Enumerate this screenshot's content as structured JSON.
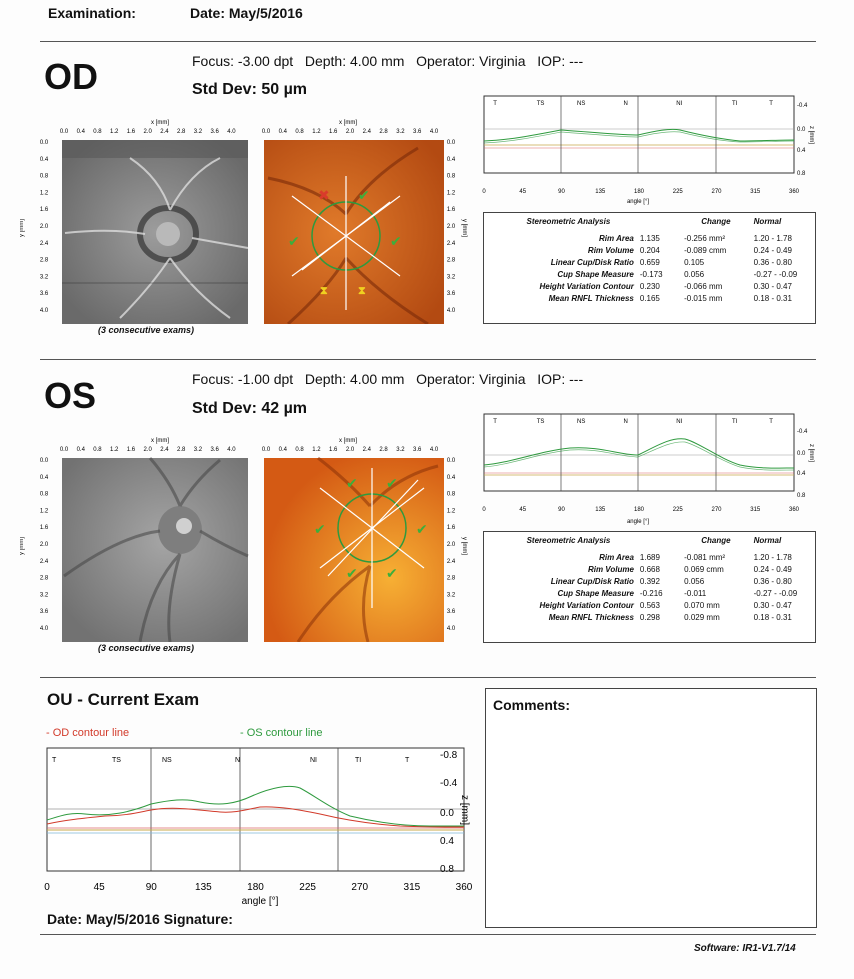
{
  "header": {
    "examination_label": "Examination:",
    "date_label": "Date: May/5/2016"
  },
  "od": {
    "eye_label": "OD",
    "focus_line": "Focus: -3.00 dpt   Depth: 4.00 mm   Operator: Virginia   IOP: ---",
    "std_dev": "Std Dev: 50 µm",
    "exams_caption": "(3 consecutive exams)",
    "sectors": [
      "T",
      "TS",
      "NS",
      "N",
      "NI",
      "TI",
      "T"
    ],
    "stereo": {
      "header": [
        "Stereometric Analysis",
        "Change",
        "Normal"
      ],
      "rows": [
        {
          "label": "Rim Area",
          "value": "1.135",
          "change": "-0.256 mm²",
          "normal": "1.20 - 1.78"
        },
        {
          "label": "Rim Volume",
          "value": "0.204",
          "change": "-0.089 cmm",
          "normal": "0.24 - 0.49"
        },
        {
          "label": "Linear Cup/Disk Ratio",
          "value": "0.659",
          "change": "0.105",
          "normal": "0.36 - 0.80"
        },
        {
          "label": "Cup Shape Measure",
          "value": "-0.173",
          "change": "0.056",
          "normal": "-0.27 - -0.09"
        },
        {
          "label": "Height Variation Contour",
          "value": "0.230",
          "change": "-0.066 mm",
          "normal": "0.30 - 0.47"
        },
        {
          "label": "Mean RNFL Thickness",
          "value": "0.165",
          "change": "-0.015 mm",
          "normal": "0.18 - 0.31"
        }
      ]
    }
  },
  "os": {
    "eye_label": "OS",
    "focus_line": "Focus: -1.00 dpt   Depth: 4.00 mm   Operator: Virginia   IOP: ---",
    "std_dev": "Std Dev: 42 µm",
    "exams_caption": "(3 consecutive exams)",
    "sectors": [
      "T",
      "TS",
      "NS",
      "N",
      "NI",
      "TI",
      "T"
    ],
    "stereo": {
      "header": [
        "Stereometric Analysis",
        "Change",
        "Normal"
      ],
      "rows": [
        {
          "label": "Rim Area",
          "value": "1.689",
          "change": "-0.081 mm²",
          "normal": "1.20 - 1.78"
        },
        {
          "label": "Rim Volume",
          "value": "0.668",
          "change": "0.069 cmm",
          "normal": "0.24 - 0.49"
        },
        {
          "label": "Linear Cup/Disk Ratio",
          "value": "0.392",
          "change": "0.056",
          "normal": "0.36 - 0.80"
        },
        {
          "label": "Cup Shape Measure",
          "value": "-0.216",
          "change": "-0.011",
          "normal": "-0.27 - -0.09"
        },
        {
          "label": "Height Variation Contour",
          "value": "0.563",
          "change": "0.070 mm",
          "normal": "0.30 - 0.47"
        },
        {
          "label": "Mean RNFL Thickness",
          "value": "0.298",
          "change": "0.029 mm",
          "normal": "0.18 - 0.31"
        }
      ]
    }
  },
  "image_axes": {
    "x_label": "x [mm]",
    "y_label": "y [mm]",
    "ticks": [
      "0.0",
      "0.4",
      "0.8",
      "1.2",
      "1.6",
      "2.0",
      "2.4",
      "2.8",
      "3.2",
      "3.6",
      "4.0"
    ]
  },
  "profile_axes": {
    "x_ticks": [
      "0",
      "45",
      "90",
      "135",
      "180",
      "225",
      "270",
      "315",
      "360"
    ],
    "x_label": "angle [°]",
    "y_ticks": [
      "-0.4",
      "0.0",
      "0.4",
      "0.8"
    ],
    "y_label": "z [mm]"
  },
  "ou": {
    "title": "OU - Current Exam",
    "od_legend": "- OD contour line",
    "os_legend": "- OS contour line",
    "sectors": [
      "T",
      "TS",
      "NS",
      "N",
      "NI",
      "TI",
      "T"
    ],
    "y_ticks": [
      "-0.8",
      "-0.4",
      "0.0",
      "0.4",
      "0.8"
    ],
    "x_ticks": [
      "0",
      "45",
      "90",
      "135",
      "180",
      "225",
      "270",
      "315",
      "360"
    ],
    "x_label": "angle [°]",
    "y_label": "z [mm]"
  },
  "comments": {
    "label": "Comments:"
  },
  "footer": {
    "date_signature": "Date: May/5/2016  Signature:",
    "software": "Software: IR1-V1.7/14"
  },
  "colors": {
    "od_line": "#d23a2a",
    "os_line": "#2e9a3e",
    "orange_fundus": "#d4651c",
    "ref_line": "#b8a24a"
  }
}
